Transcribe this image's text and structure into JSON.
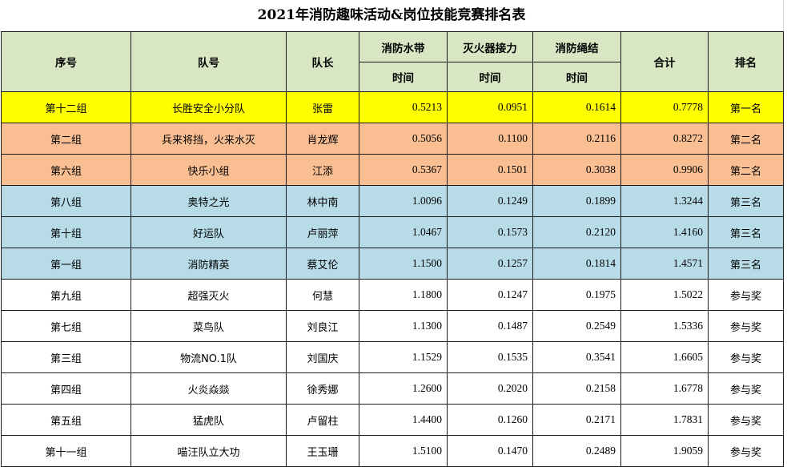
{
  "title": "2021年消防趣味活动&岗位技能竞赛排名表",
  "headers": {
    "seq": "序号",
    "team": "队号",
    "captain": "队长",
    "hose": "消防水带",
    "extinguisher": "灭火器接力",
    "rope": "消防绳结",
    "time": "时间",
    "total": "合计",
    "rank": "排名"
  },
  "colors": {
    "header_bg": "#d9e6c4",
    "first_prize": "#ffff00",
    "second_prize": "#f9bf92",
    "third_prize": "#b7dce8",
    "participation": "#ffffff"
  },
  "rows": [
    {
      "group": "第十二组",
      "team": "长胜安全小分队",
      "captain": "张雷",
      "hose": "0.5213",
      "extinguisher": "0.0951",
      "rope": "0.1614",
      "total": "0.7778",
      "rank": "第一名",
      "tier": "yellow"
    },
    {
      "group": "第二组",
      "team": "兵来将挡，火来水灭",
      "captain": "肖龙辉",
      "hose": "0.5056",
      "extinguisher": "0.1100",
      "rope": "0.2116",
      "total": "0.8272",
      "rank": "第二名",
      "tier": "orange"
    },
    {
      "group": "第六组",
      "team": "快乐小组",
      "captain": "江添",
      "hose": "0.5367",
      "extinguisher": "0.1501",
      "rope": "0.3038",
      "total": "0.9906",
      "rank": "第二名",
      "tier": "orange"
    },
    {
      "group": "第八组",
      "team": "奥特之光",
      "captain": "林中南",
      "hose": "1.0096",
      "extinguisher": "0.1249",
      "rope": "0.1899",
      "total": "1.3244",
      "rank": "第三名",
      "tier": "blue"
    },
    {
      "group": "第十组",
      "team": "好运队",
      "captain": "卢丽萍",
      "hose": "1.0467",
      "extinguisher": "0.1573",
      "rope": "0.2120",
      "total": "1.4160",
      "rank": "第三名",
      "tier": "blue"
    },
    {
      "group": "第一组",
      "team": "消防精英",
      "captain": "蔡艾伦",
      "hose": "1.1500",
      "extinguisher": "0.1257",
      "rope": "0.1814",
      "total": "1.4571",
      "rank": "第三名",
      "tier": "blue"
    },
    {
      "group": "第九组",
      "team": "超强灭火",
      "captain": "何慧",
      "hose": "1.1800",
      "extinguisher": "0.1247",
      "rope": "0.1975",
      "total": "1.5022",
      "rank": "参与奖",
      "tier": "white"
    },
    {
      "group": "第七组",
      "team": "菜鸟队",
      "captain": "刘良江",
      "hose": "1.1300",
      "extinguisher": "0.1487",
      "rope": "0.2549",
      "total": "1.5336",
      "rank": "参与奖",
      "tier": "white"
    },
    {
      "group": "第三组",
      "team": "物流NO.1队",
      "captain": "刘国庆",
      "hose": "1.1529",
      "extinguisher": "0.1535",
      "rope": "0.3541",
      "total": "1.6605",
      "rank": "参与奖",
      "tier": "white"
    },
    {
      "group": "第四组",
      "team": "火炎焱燚",
      "captain": "徐秀娜",
      "hose": "1.2600",
      "extinguisher": "0.2020",
      "rope": "0.2158",
      "total": "1.6778",
      "rank": "参与奖",
      "tier": "white"
    },
    {
      "group": "第五组",
      "team": "猛虎队",
      "captain": "卢留柱",
      "hose": "1.4400",
      "extinguisher": "0.1260",
      "rope": "0.2171",
      "total": "1.7831",
      "rank": "参与奖",
      "tier": "white"
    },
    {
      "group": "第十一组",
      "team": "喵汪队立大功",
      "captain": "王玉珊",
      "hose": "1.5100",
      "extinguisher": "0.1470",
      "rope": "0.2489",
      "total": "1.9059",
      "rank": "参与奖",
      "tier": "white"
    }
  ]
}
